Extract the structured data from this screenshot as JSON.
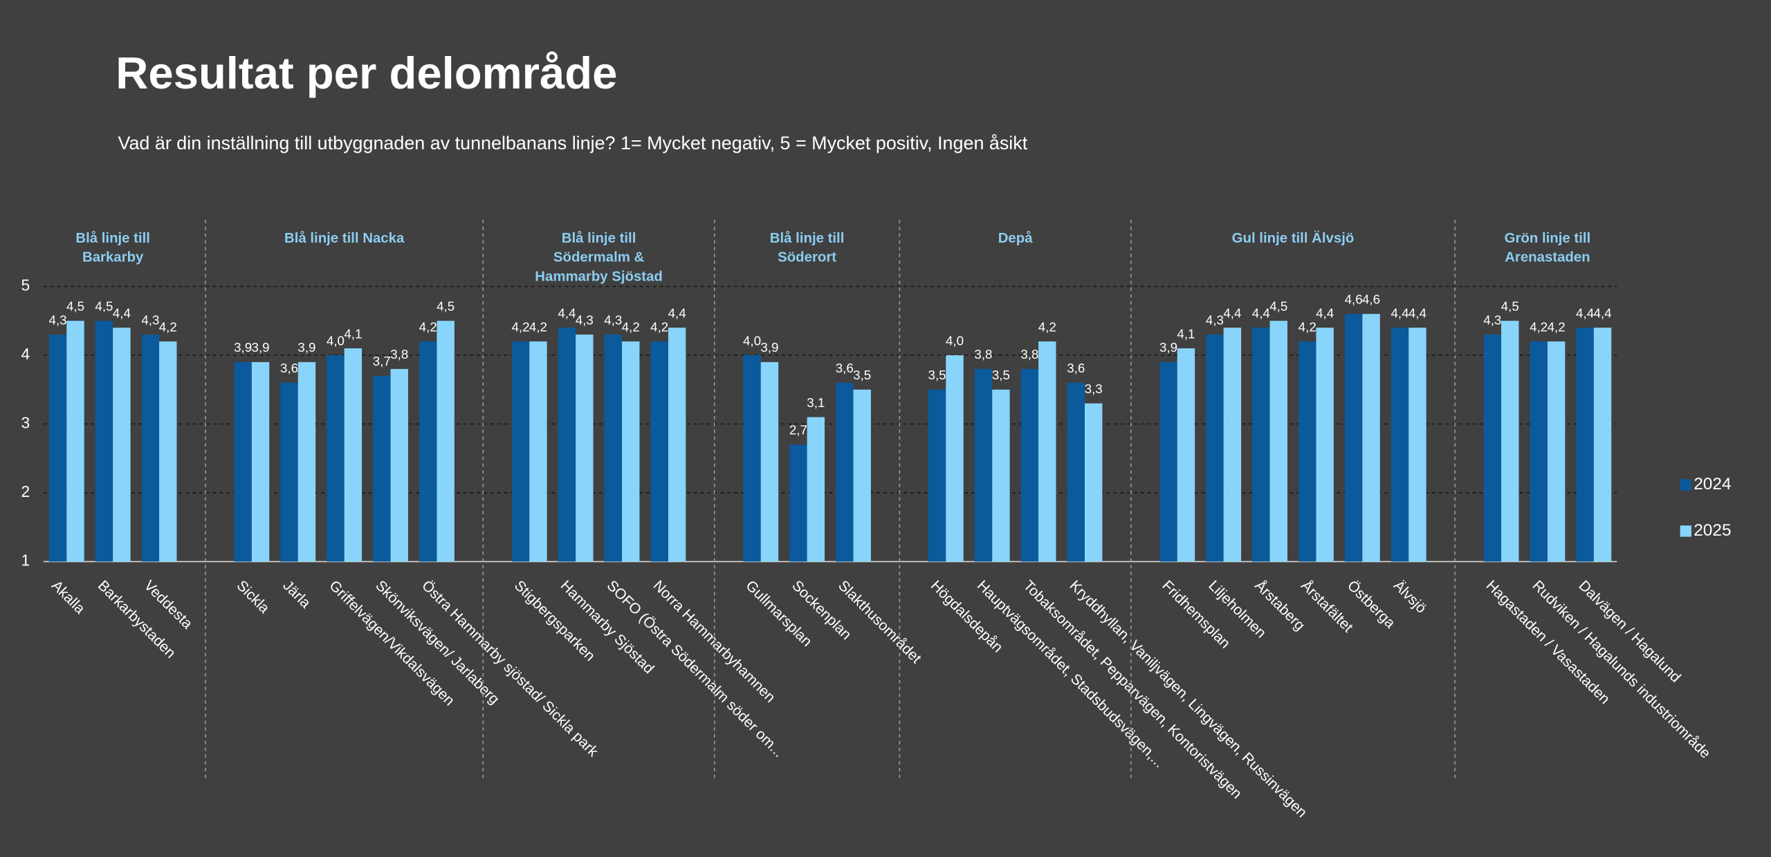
{
  "chart_data": {
    "type": "bar",
    "title": "Resultat per delområde",
    "subtitle": "Vad är din inställning till utbyggnaden av tunnelbanans linje?  1= Mycket negativ, 5 = Mycket positiv, Ingen åsikt",
    "groups": [
      {
        "label": [
          "Blå linje till",
          "Barkarby"
        ],
        "categories": [
          "Akalla",
          "Barkarbystaden",
          "Veddesta"
        ]
      },
      {
        "label": [
          "Blå linje till Nacka"
        ],
        "categories": [
          "Sickla",
          "Järla",
          "Griffelvägen/Vikdalsvägen",
          "Skönviksvägen/ Jarlaberg",
          "Östra Hammarby sjöstad/ Sickla park"
        ]
      },
      {
        "label": [
          "Blå linje till",
          "Södermalm &",
          "Hammarby Sjöstad"
        ],
        "categories": [
          "Stigbergsparken",
          "Hammarby Sjöstad",
          "SOFO (Östra Södermalm söder om...",
          "Norra Hammarbyhamnen"
        ]
      },
      {
        "label": [
          "Blå linje till",
          "Söderort"
        ],
        "categories": [
          "Gullmarsplan",
          "Sockenplan",
          "Slakthusområdet"
        ]
      },
      {
        "label": [
          "Depå"
        ],
        "categories": [
          "Högdalsdepån",
          "Hauptvägsområdet, Stadsbudsvägen,...",
          "Tobaksområdet, Pepparvägen, Kontoristvägen",
          "Kryddhyllan, Vaniljvägen, Lingvägen, Russinvägen"
        ]
      },
      {
        "label": [
          "Gul linje till Älvsjö"
        ],
        "categories": [
          "Fridhemsplan",
          "Liljeholmen",
          "Årstaberg",
          "Årstafältet",
          "Östberga",
          "Älvsjö"
        ]
      },
      {
        "label": [
          "Grön linje till",
          "Arenastaden"
        ],
        "categories": [
          "Hagastaden / Vasastaden",
          "Rudviken / Hagalunds industriområde",
          "Dalvägen / Hagalund"
        ]
      }
    ],
    "series": [
      {
        "name": "2024",
        "color": "#0a5a9c",
        "values": [
          4.3,
          4.5,
          4.3,
          3.9,
          3.6,
          4.0,
          3.7,
          4.2,
          4.2,
          4.4,
          4.3,
          4.2,
          4.0,
          2.7,
          3.6,
          3.5,
          3.8,
          3.8,
          3.6,
          3.9,
          4.3,
          4.4,
          4.2,
          4.6,
          4.4,
          4.3,
          4.2,
          4.4
        ],
        "value_labels": [
          "4,3",
          "4,5",
          "4,3",
          "3,9",
          "3,6",
          "4,0",
          "3,7",
          "4,2",
          "4,2",
          "4,4",
          "4,3",
          "4,2",
          "4,0",
          "2,7",
          "3,6",
          "3,5",
          "3,8",
          "3,8",
          "3,6",
          "3,9",
          "4,3",
          "4,4",
          "4,2",
          "4,6",
          "4,4",
          "4,3",
          "4,2",
          "4,4"
        ]
      },
      {
        "name": "2025",
        "color": "#88d4fa",
        "values": [
          4.5,
          4.4,
          4.2,
          3.9,
          3.9,
          4.1,
          3.8,
          4.5,
          4.2,
          4.3,
          4.2,
          4.4,
          3.9,
          3.1,
          3.5,
          4.0,
          3.5,
          4.2,
          3.3,
          4.1,
          4.4,
          4.5,
          4.4,
          4.6,
          4.4,
          4.5,
          4.2,
          4.4
        ],
        "value_labels": [
          "4,5",
          "4,4",
          "4,2",
          "3,9",
          "3,9",
          "4,1",
          "3,8",
          "4,5",
          "4,2",
          "4,3",
          "4,2",
          "4,4",
          "3,9",
          "3,1",
          "3,5",
          "4,0",
          "3,5",
          "4,2",
          "3,3",
          "4,1",
          "4,4",
          "4,5",
          "4,4",
          "4,6",
          "4,4",
          "4,5",
          "4,2",
          "4,4"
        ]
      }
    ],
    "ylim": [
      1,
      5
    ],
    "yticks": [
      1,
      2,
      3,
      4,
      5
    ],
    "grid": true
  }
}
